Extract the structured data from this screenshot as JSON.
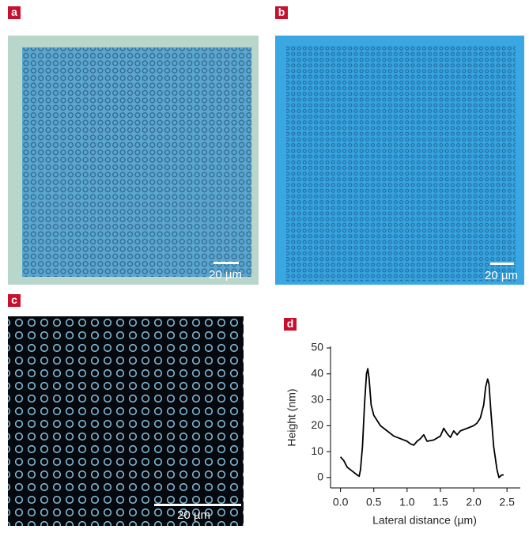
{
  "panels": [
    {
      "label": "a",
      "scale_bar": "20 µm"
    },
    {
      "label": "b",
      "scale_bar": "20 µm"
    },
    {
      "label": "c",
      "scale_bar": "20 µm"
    }
  ],
  "chart_data": {
    "type": "line",
    "panel_label": "d",
    "xlabel": "Lateral distance (µm)",
    "ylabel": "Height (nm)",
    "x": [
      0,
      0.05,
      0.1,
      0.2,
      0.25,
      0.28,
      0.3,
      0.33,
      0.36,
      0.39,
      0.41,
      0.43,
      0.46,
      0.5,
      0.55,
      0.6,
      0.7,
      0.8,
      0.9,
      1.0,
      1.05,
      1.1,
      1.15,
      1.2,
      1.25,
      1.3,
      1.4,
      1.5,
      1.55,
      1.6,
      1.65,
      1.7,
      1.75,
      1.8,
      1.9,
      2.0,
      2.05,
      2.1,
      2.15,
      2.18,
      2.21,
      2.23,
      2.26,
      2.3,
      2.35,
      2.38,
      2.42,
      2.45
    ],
    "series": [
      {
        "color": "#000000",
        "values": [
          8,
          6.5,
          4,
          2,
          1,
          0.5,
          3,
          12,
          28,
          40,
          42,
          38,
          28,
          24,
          22,
          20,
          18,
          16,
          15,
          14,
          13,
          12.5,
          14,
          15,
          16.5,
          14,
          14.5,
          16,
          19,
          17,
          15.5,
          18,
          16.5,
          18,
          19,
          20,
          21,
          23,
          28,
          35,
          38,
          36,
          25,
          12,
          3,
          0,
          1,
          1
        ]
      }
    ],
    "xlim": [
      -0.15,
      2.7
    ],
    "ylim": [
      -4,
      50
    ],
    "xticks": [
      {
        "value": 0,
        "label": "0.0"
      },
      0.5,
      {
        "value": 1,
        "label": "1.0"
      },
      1.5,
      {
        "value": 2,
        "label": "2.0"
      },
      2.5
    ],
    "yticks": [
      0,
      10,
      20,
      30,
      40,
      50
    ]
  }
}
